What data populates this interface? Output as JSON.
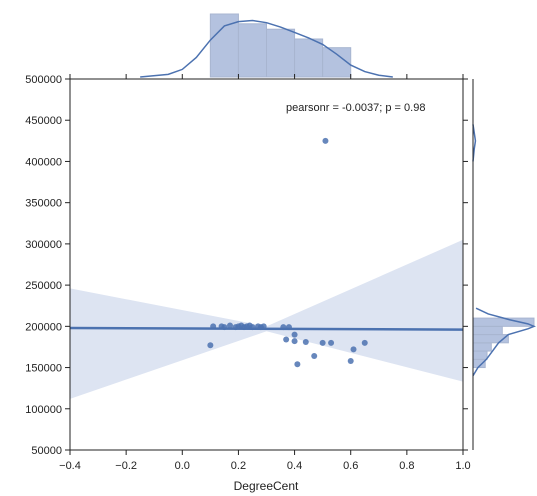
{
  "chart_data": {
    "type": "scatter",
    "variant": "jointplot with linear regression, marginal histograms and KDE",
    "annotation": "pearsonr = -0.0037; p = 0.98",
    "xlabel": "DegreeCent",
    "ylabel": "",
    "xlim": [
      -0.4,
      1.0
    ],
    "ylim": [
      50000,
      500000
    ],
    "x_ticks": [
      -0.4,
      -0.2,
      0.0,
      0.2,
      0.4,
      0.6,
      0.8,
      1.0
    ],
    "x_tick_labels": [
      "−0.4",
      "−0.2",
      "0.0",
      "0.2",
      "0.4",
      "0.6",
      "0.8",
      "1.0"
    ],
    "y_ticks": [
      50000,
      100000,
      150000,
      200000,
      250000,
      300000,
      350000,
      400000,
      450000,
      500000
    ],
    "y_tick_labels": [
      "50000",
      "100000",
      "150000",
      "200000",
      "250000",
      "300000",
      "350000",
      "400000",
      "450000",
      "500000"
    ],
    "grid": false,
    "colors": {
      "points": "#4c72b0",
      "regression_line": "#4c72b0",
      "confidence_band": "#dde4f2",
      "histogram_fill": "#b4c2df",
      "histogram_edge": "#a8b5d0",
      "kde_line": "#4c72b0",
      "axis": "#222222"
    },
    "points": [
      {
        "x": 0.1,
        "y": 177000
      },
      {
        "x": 0.11,
        "y": 200000
      },
      {
        "x": 0.14,
        "y": 200000
      },
      {
        "x": 0.15,
        "y": 199000
      },
      {
        "x": 0.17,
        "y": 201000
      },
      {
        "x": 0.19,
        "y": 199000
      },
      {
        "x": 0.2,
        "y": 200000
      },
      {
        "x": 0.21,
        "y": 201000
      },
      {
        "x": 0.22,
        "y": 199000
      },
      {
        "x": 0.23,
        "y": 200000
      },
      {
        "x": 0.24,
        "y": 201000
      },
      {
        "x": 0.25,
        "y": 199000
      },
      {
        "x": 0.27,
        "y": 200000
      },
      {
        "x": 0.28,
        "y": 199000
      },
      {
        "x": 0.29,
        "y": 200000
      },
      {
        "x": 0.36,
        "y": 199000
      },
      {
        "x": 0.37,
        "y": 184000
      },
      {
        "x": 0.38,
        "y": 199000
      },
      {
        "x": 0.4,
        "y": 190000
      },
      {
        "x": 0.4,
        "y": 182000
      },
      {
        "x": 0.41,
        "y": 154000
      },
      {
        "x": 0.44,
        "y": 181000
      },
      {
        "x": 0.47,
        "y": 164000
      },
      {
        "x": 0.5,
        "y": 180000
      },
      {
        "x": 0.51,
        "y": 425000
      },
      {
        "x": 0.53,
        "y": 180000
      },
      {
        "x": 0.6,
        "y": 158000
      },
      {
        "x": 0.61,
        "y": 172000
      },
      {
        "x": 0.65,
        "y": 180000
      }
    ],
    "regression": {
      "start": {
        "x": -0.4,
        "y": 198000
      },
      "end": {
        "x": 1.0,
        "y": 196000
      },
      "ci_lower_at_xmin": 112000,
      "ci_upper_at_xmin": 246000,
      "ci_lower_at_xmax": 133000,
      "ci_upper_at_xmax": 305000,
      "ci_center_x": 0.3,
      "ci_halfwidth_at_center": 3000
    },
    "marginal_x_histogram": {
      "bin_edges": [
        0.1,
        0.2,
        0.3,
        0.4,
        0.5,
        0.6
      ],
      "density": [
        2.9,
        2.45,
        2.2,
        1.75,
        1.35
      ],
      "kde": [
        [
          -0.15,
          0.0
        ],
        [
          -0.05,
          0.12
        ],
        [
          0.0,
          0.35
        ],
        [
          0.05,
          0.9
        ],
        [
          0.1,
          1.7
        ],
        [
          0.15,
          2.35
        ],
        [
          0.2,
          2.55
        ],
        [
          0.25,
          2.6
        ],
        [
          0.3,
          2.5
        ],
        [
          0.35,
          2.3
        ],
        [
          0.4,
          2.05
        ],
        [
          0.45,
          1.8
        ],
        [
          0.5,
          1.5
        ],
        [
          0.55,
          1.05
        ],
        [
          0.6,
          0.55
        ],
        [
          0.65,
          0.25
        ],
        [
          0.7,
          0.08
        ],
        [
          0.75,
          0.0
        ]
      ]
    },
    "marginal_y_histogram": {
      "bin_edges": [
        150000,
        160000,
        170000,
        180000,
        190000,
        200000,
        210000
      ],
      "density": [
        0.2,
        0.23,
        0.3,
        0.58,
        0.48,
        1.0
      ],
      "kde": [
        [
          140000,
          0.0
        ],
        [
          150000,
          0.08
        ],
        [
          160000,
          0.22
        ],
        [
          170000,
          0.32
        ],
        [
          180000,
          0.42
        ],
        [
          190000,
          0.58
        ],
        [
          197000,
          0.9
        ],
        [
          200000,
          1.0
        ],
        [
          203000,
          0.9
        ],
        [
          208000,
          0.6
        ],
        [
          215000,
          0.25
        ],
        [
          222000,
          0.05
        ],
        [
          400000,
          0.0
        ],
        [
          415000,
          0.02
        ],
        [
          425000,
          0.04
        ],
        [
          435000,
          0.02
        ],
        [
          445000,
          0.0
        ]
      ]
    }
  }
}
